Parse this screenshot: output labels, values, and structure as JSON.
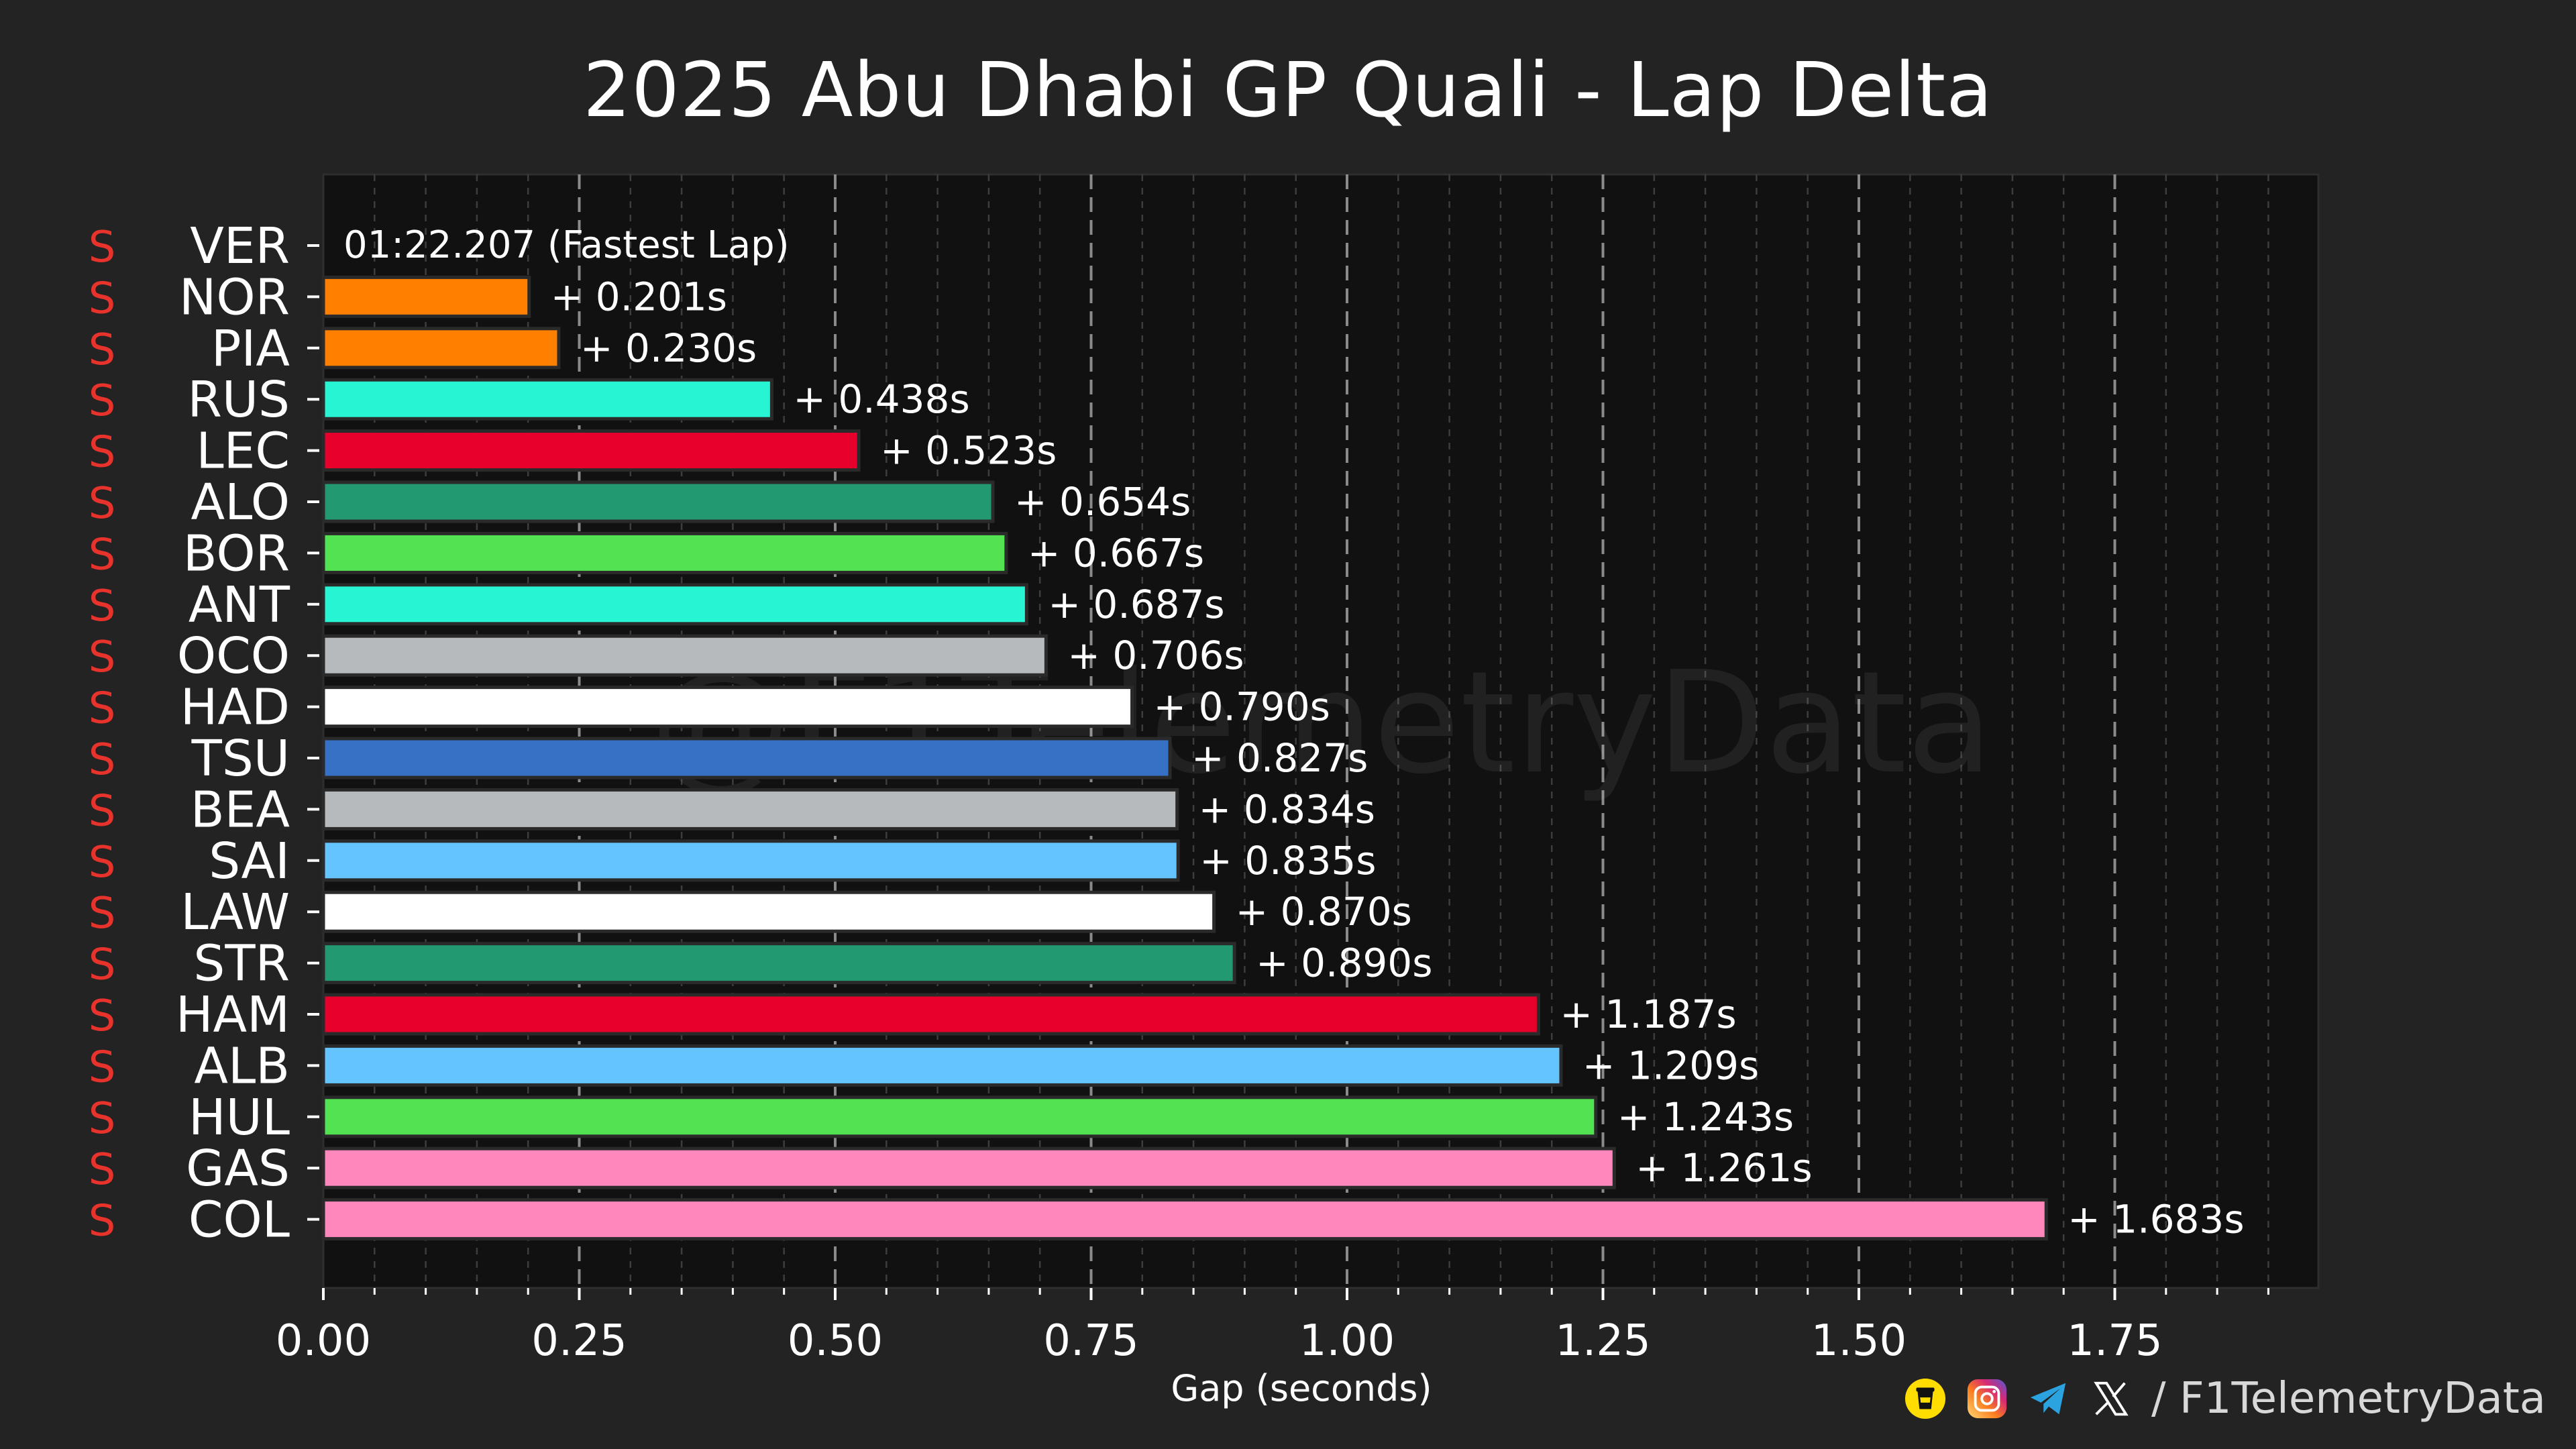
{
  "title": "2025 Abu Dhabi GP Quali - Lap Delta",
  "watermark": "@F1TelemetryData",
  "footer": {
    "handle": "/ F1TelemetryData"
  },
  "colors": {
    "background": "#232323",
    "plot_background": "#111111",
    "tyre_soft": "#e8322c"
  },
  "chart_data": {
    "type": "bar",
    "orientation": "horizontal",
    "title": "2025 Abu Dhabi GP Quali - Lap Delta",
    "xlabel": "Gap (seconds)",
    "ylabel": "",
    "xlim": [
      0,
      1.95
    ],
    "x_ticks": [
      "0.00",
      "0.25",
      "0.50",
      "0.75",
      "1.00",
      "1.25",
      "1.50",
      "1.75"
    ],
    "grid": true,
    "tyre_label": "S",
    "fastest_lap_label": "01:22.207 (Fastest Lap)",
    "drivers": [
      {
        "code": "VER",
        "gap": 0.0,
        "label": "01:22.207 (Fastest Lap)",
        "color": "#3671c6"
      },
      {
        "code": "NOR",
        "gap": 0.201,
        "label": "+ 0.201s",
        "color": "#ff8000"
      },
      {
        "code": "PIA",
        "gap": 0.23,
        "label": "+ 0.230s",
        "color": "#ff8000"
      },
      {
        "code": "RUS",
        "gap": 0.438,
        "label": "+ 0.438s",
        "color": "#27f4d2"
      },
      {
        "code": "LEC",
        "gap": 0.523,
        "label": "+ 0.523s",
        "color": "#e8002d"
      },
      {
        "code": "ALO",
        "gap": 0.654,
        "label": "+ 0.654s",
        "color": "#229971"
      },
      {
        "code": "BOR",
        "gap": 0.667,
        "label": "+ 0.667s",
        "color": "#52e252"
      },
      {
        "code": "ANT",
        "gap": 0.687,
        "label": "+ 0.687s",
        "color": "#27f4d2"
      },
      {
        "code": "OCO",
        "gap": 0.706,
        "label": "+ 0.706s",
        "color": "#b6babd"
      },
      {
        "code": "HAD",
        "gap": 0.79,
        "label": "+ 0.790s",
        "color": "#ffffff"
      },
      {
        "code": "TSU",
        "gap": 0.827,
        "label": "+ 0.827s",
        "color": "#3671c6"
      },
      {
        "code": "BEA",
        "gap": 0.834,
        "label": "+ 0.834s",
        "color": "#b6babd"
      },
      {
        "code": "SAI",
        "gap": 0.835,
        "label": "+ 0.835s",
        "color": "#64c4ff"
      },
      {
        "code": "LAW",
        "gap": 0.87,
        "label": "+ 0.870s",
        "color": "#ffffff"
      },
      {
        "code": "STR",
        "gap": 0.89,
        "label": "+ 0.890s",
        "color": "#229971"
      },
      {
        "code": "HAM",
        "gap": 1.187,
        "label": "+ 1.187s",
        "color": "#e8002d"
      },
      {
        "code": "ALB",
        "gap": 1.209,
        "label": "+ 1.209s",
        "color": "#64c4ff"
      },
      {
        "code": "HUL",
        "gap": 1.243,
        "label": "+ 1.243s",
        "color": "#52e252"
      },
      {
        "code": "GAS",
        "gap": 1.261,
        "label": "+ 1.261s",
        "color": "#ff87bc"
      },
      {
        "code": "COL",
        "gap": 1.683,
        "label": "+ 1.683s",
        "color": "#ff87bc"
      }
    ]
  }
}
